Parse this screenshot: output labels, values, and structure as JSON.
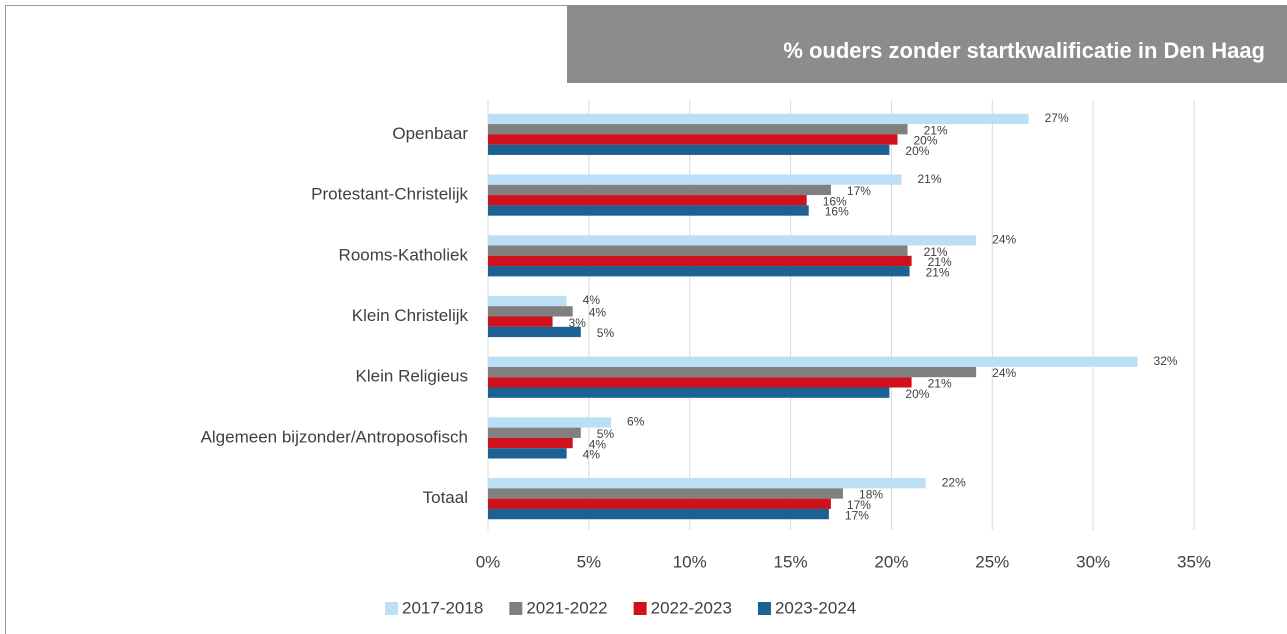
{
  "chart_data": {
    "type": "bar",
    "orientation": "horizontal",
    "title": "% ouders zonder startkwalificatie in Den Haag",
    "categories": [
      "Openbaar",
      "Protestant-Christelijk",
      "Rooms-Katholiek",
      "Klein Christelijk",
      "Klein Religieus",
      "Algemeen bijzonder/Antroposofisch",
      "Totaal"
    ],
    "series": [
      {
        "name": "2017-2018",
        "color": "#bddff5",
        "values": [
          26.8,
          20.5,
          24.2,
          3.9,
          32.2,
          6.1,
          21.7
        ],
        "value_labels": [
          "27%",
          "21%",
          "24%",
          "4%",
          "32%",
          "6%",
          "22%"
        ]
      },
      {
        "name": "2021-2022",
        "color": "#808080",
        "values": [
          20.8,
          17.0,
          20.8,
          4.2,
          24.2,
          4.6,
          17.6
        ],
        "value_labels": [
          "21%",
          "17%",
          "21%",
          "4%",
          "24%",
          "5%",
          "18%"
        ]
      },
      {
        "name": "2022-2023",
        "color": "#d0111d",
        "values": [
          20.3,
          15.8,
          21.0,
          3.2,
          21.0,
          4.2,
          17.0
        ],
        "value_labels": [
          "20%",
          "16%",
          "21%",
          "3%",
          "21%",
          "4%",
          "17%"
        ]
      },
      {
        "name": "2023-2024",
        "color": "#1b6192",
        "values": [
          19.9,
          15.9,
          20.9,
          4.6,
          19.9,
          3.9,
          16.9
        ],
        "value_labels": [
          "20%",
          "16%",
          "21%",
          "5%",
          "20%",
          "4%",
          "17%"
        ]
      }
    ],
    "xlim": [
      0,
      35
    ],
    "xticks": [
      {
        "value": 0,
        "label": "0%"
      },
      {
        "value": 5,
        "label": "5%"
      },
      {
        "value": 10,
        "label": "10%"
      },
      {
        "value": 15,
        "label": "15%"
      },
      {
        "value": 20,
        "label": "20%"
      },
      {
        "value": 25,
        "label": "25%"
      },
      {
        "value": 30,
        "label": "30%"
      },
      {
        "value": 35,
        "label": "35%"
      }
    ],
    "grid": true,
    "legend": "bottom"
  }
}
